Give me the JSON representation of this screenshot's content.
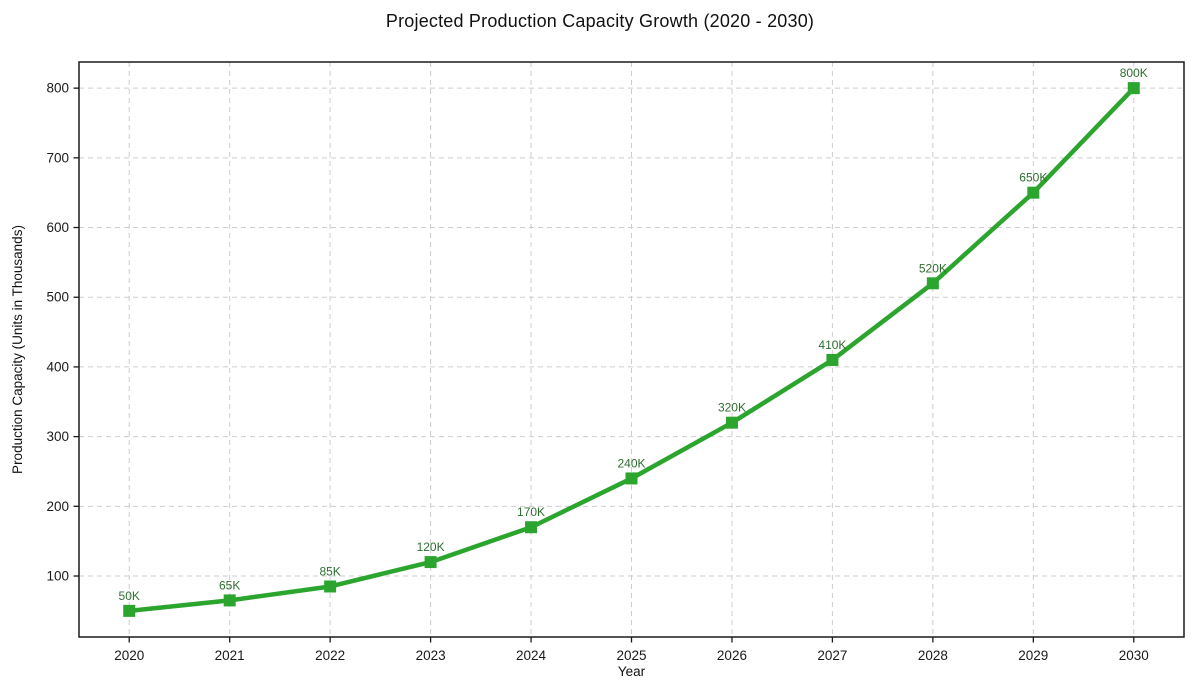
{
  "chart_data": {
    "type": "line",
    "title": "Projected Production Capacity Growth (2020 - 2030)",
    "xlabel": "Year",
    "ylabel": "Production Capacity (Units in Thousands)",
    "x": [
      2020,
      2021,
      2022,
      2023,
      2024,
      2025,
      2026,
      2027,
      2028,
      2029,
      2030
    ],
    "values": [
      50,
      65,
      85,
      120,
      170,
      240,
      320,
      410,
      520,
      650,
      800
    ],
    "point_labels": [
      "50K",
      "65K",
      "85K",
      "120K",
      "170K",
      "240K",
      "320K",
      "410K",
      "520K",
      "650K",
      "800K"
    ],
    "xlim": [
      2019.5,
      2030.5
    ],
    "ylim": [
      12.5,
      837.5
    ],
    "yticks": [
      100,
      200,
      300,
      400,
      500,
      600,
      700,
      800
    ],
    "grid": true,
    "grid_style": "dashed",
    "legend": "none",
    "line_color": "#2ca52f",
    "marker": "square",
    "marker_color": "#2ca52f",
    "point_label_color": "#2e6f30",
    "axis_color": "#1a1a1a",
    "grid_color": "#cdcdcd"
  }
}
